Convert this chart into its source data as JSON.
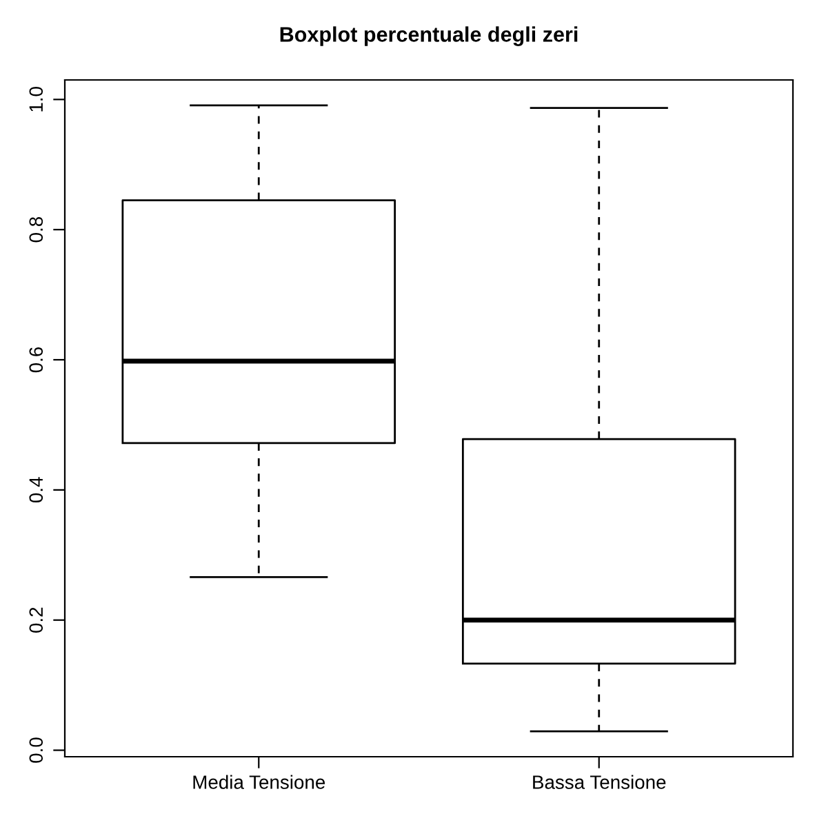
{
  "chart_data": {
    "type": "box",
    "title": "Boxplot percentuale degli zeri",
    "categories": [
      "Media Tensione",
      "Bassa Tensione"
    ],
    "boxes": [
      {
        "low": 0.266,
        "q1": 0.472,
        "median": 0.598,
        "q3": 0.845,
        "high": 0.991
      },
      {
        "low": 0.029,
        "q1": 0.133,
        "median": 0.2,
        "q3": 0.478,
        "high": 0.987
      }
    ],
    "color": "#000000",
    "ylim": [
      -0.01,
      1.03
    ],
    "yticks": [
      {
        "value": 0,
        "label": "0.0"
      },
      0.2,
      0.4,
      0.6,
      0.8,
      {
        "value": 1,
        "label": "1.0"
      }
    ],
    "grid": false,
    "legend": false
  }
}
